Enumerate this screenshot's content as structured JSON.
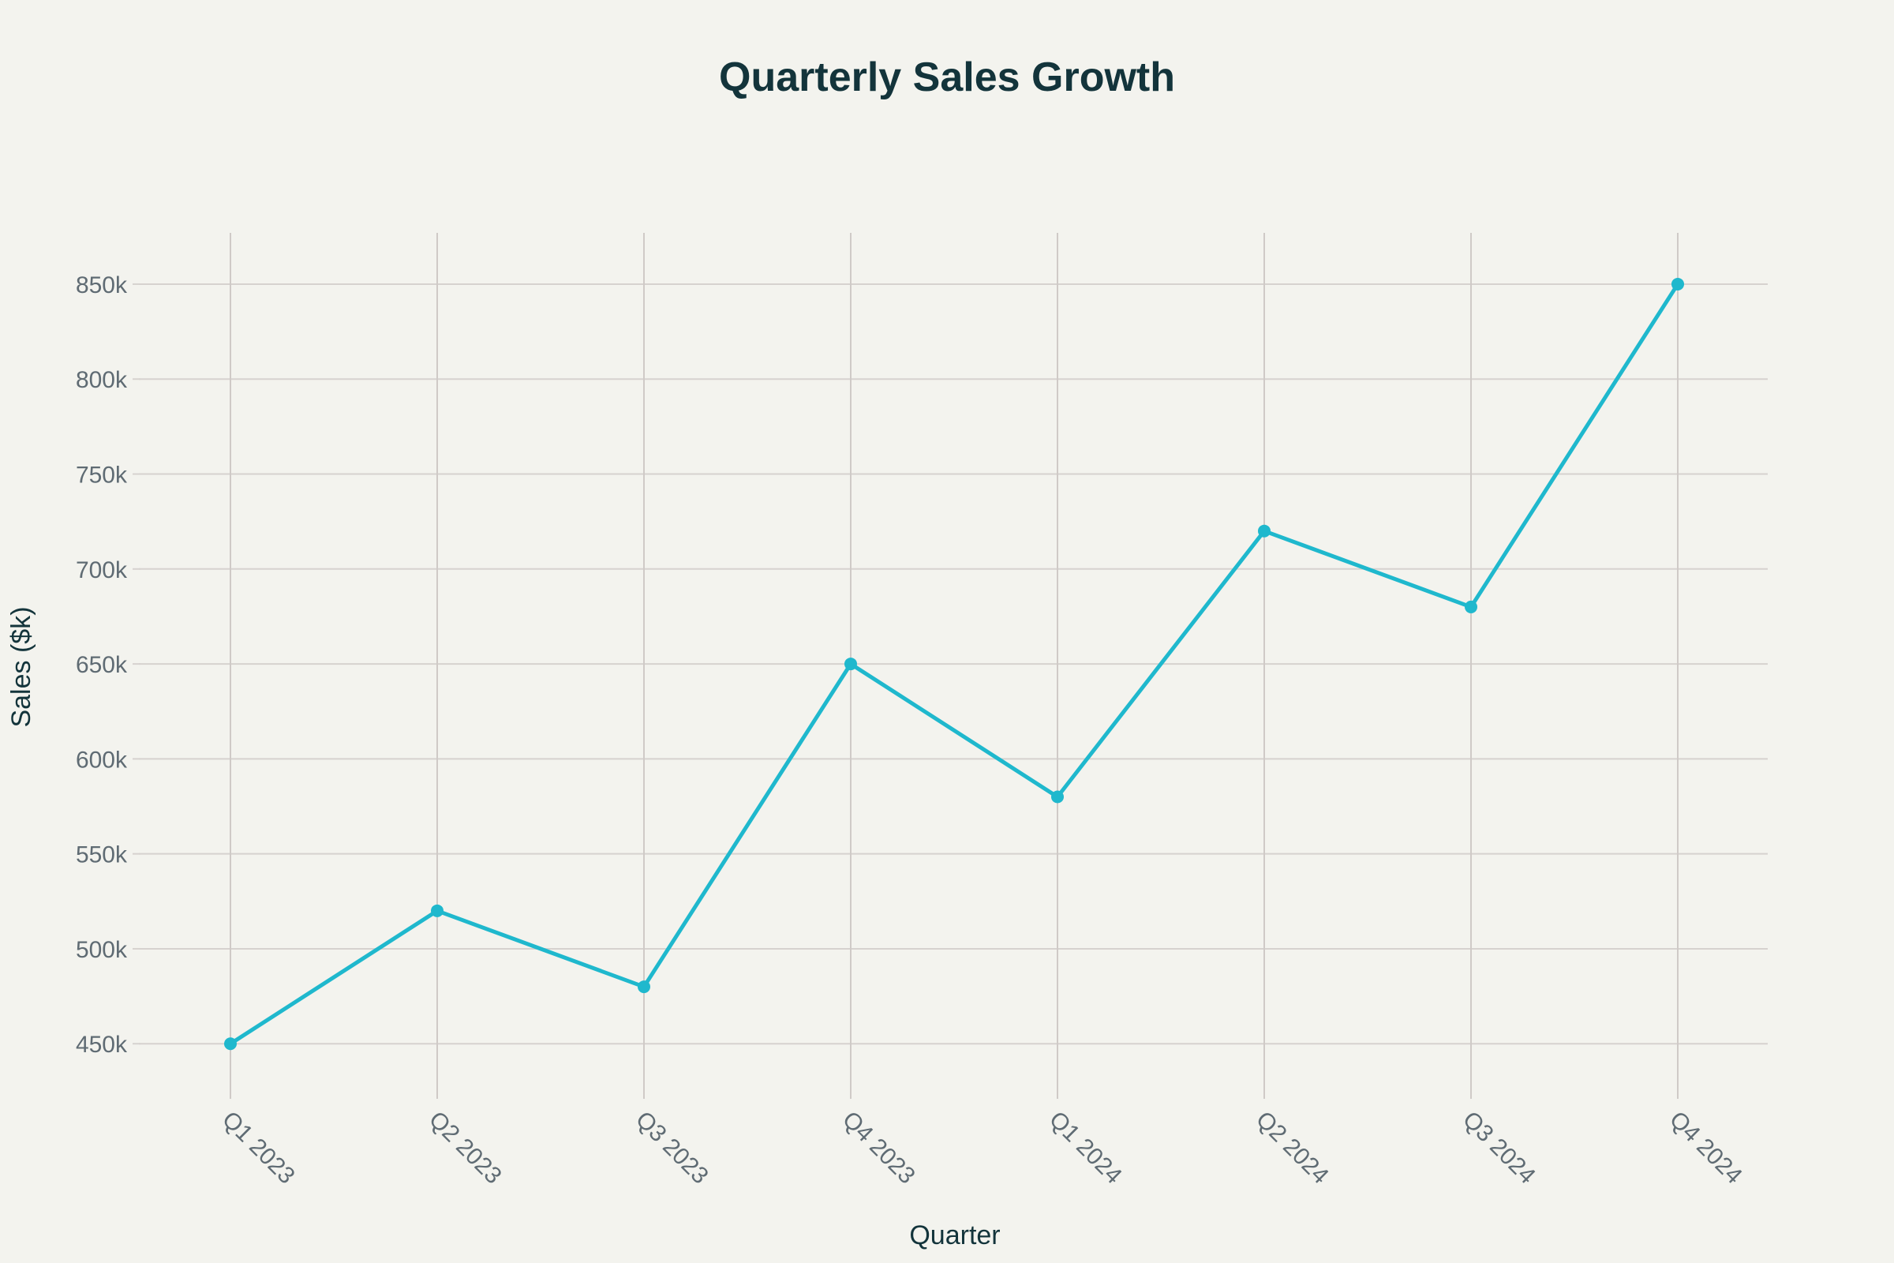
{
  "chart_data": {
    "type": "line",
    "title": "Quarterly Sales Growth",
    "xlabel": "Quarter",
    "ylabel": "Sales ($k)",
    "categories": [
      "Q1 2023",
      "Q2 2023",
      "Q3 2023",
      "Q4 2023",
      "Q1 2024",
      "Q2 2024",
      "Q3 2024",
      "Q4 2024"
    ],
    "values": [
      450000,
      520000,
      480000,
      650000,
      580000,
      720000,
      680000,
      850000
    ],
    "yticks": [
      450000,
      500000,
      550000,
      600000,
      650000,
      700000,
      750000,
      800000,
      850000
    ],
    "ytick_labels": [
      "450k",
      "500k",
      "550k",
      "600k",
      "650k",
      "700k",
      "750k",
      "800k",
      "850k"
    ],
    "ylim": [
      421000,
      877000
    ],
    "grid": true,
    "colors": {
      "line": "#1fb8cd",
      "background": "#f3f3ee",
      "grid": "#d6d2cf"
    }
  }
}
